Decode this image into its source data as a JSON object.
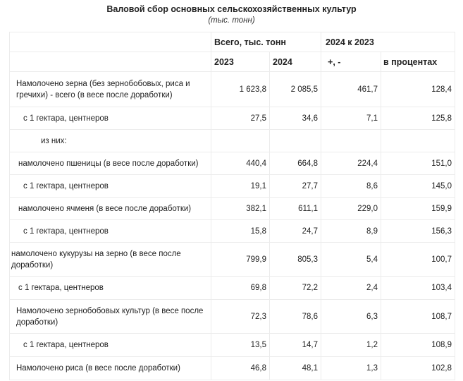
{
  "header": {
    "title": "Валовой сбор основных сельскохозяйственных культур",
    "subtitle": "(тыс. тонн)"
  },
  "columns": {
    "group_total": "Всего, тыс. тонн",
    "group_compare": "2024 к 2023",
    "y2023": "2023",
    "y2024": "2024",
    "diff": "+, -",
    "percent": "в процентах"
  },
  "rows": [
    {
      "label": "Намолочено зерна (без зернобобовых, риса и гречихи) - всего (в весе после доработки)",
      "v2023": "1 623,8",
      "v2024": "2 085,5",
      "diff": "461,7",
      "pct": "128,4"
    },
    {
      "label": "с 1 гектара, центнеров",
      "v2023": "27,5",
      "v2024": "34,6",
      "diff": "7,1",
      "pct": "125,8"
    },
    {
      "label": "из них:",
      "v2023": "",
      "v2024": "",
      "diff": "",
      "pct": ""
    },
    {
      "label": "намолочено пшеницы (в весе после доработки)",
      "v2023": "440,4",
      "v2024": "664,8",
      "diff": "224,4",
      "pct": "151,0"
    },
    {
      "label": "с 1 гектара, центнеров",
      "v2023": "19,1",
      "v2024": "27,7",
      "diff": "8,6",
      "pct": "145,0"
    },
    {
      "label": "намолочено ячменя (в весе после доработки)",
      "v2023": "382,1",
      "v2024": "611,1",
      "diff": "229,0",
      "pct": "159,9"
    },
    {
      "label": "с 1 гектара, центнеров",
      "v2023": "15,8",
      "v2024": "24,7",
      "diff": "8,9",
      "pct": "156,3"
    },
    {
      "label": "намолочено кукурузы на зерно (в весе после доработки)",
      "v2023": "799,9",
      "v2024": "805,3",
      "diff": "5,4",
      "pct": "100,7"
    },
    {
      "label": "с 1 гектара, центнеров",
      "v2023": "69,8",
      "v2024": "72,2",
      "diff": "2,4",
      "pct": "103,4"
    },
    {
      "label": "Намолочено зернобобовых культур (в весе после доработки)",
      "v2023": "72,3",
      "v2024": "78,6",
      "diff": "6,3",
      "pct": "108,7"
    },
    {
      "label": "с 1 гектара, центнеров",
      "v2023": "13,5",
      "v2024": "14,7",
      "diff": "1,2",
      "pct": "108,9"
    },
    {
      "label": "Намолочено риса (в весе после доработки)",
      "v2023": "46,8",
      "v2024": "48,1",
      "diff": "1,3",
      "pct": "102,8"
    }
  ]
}
